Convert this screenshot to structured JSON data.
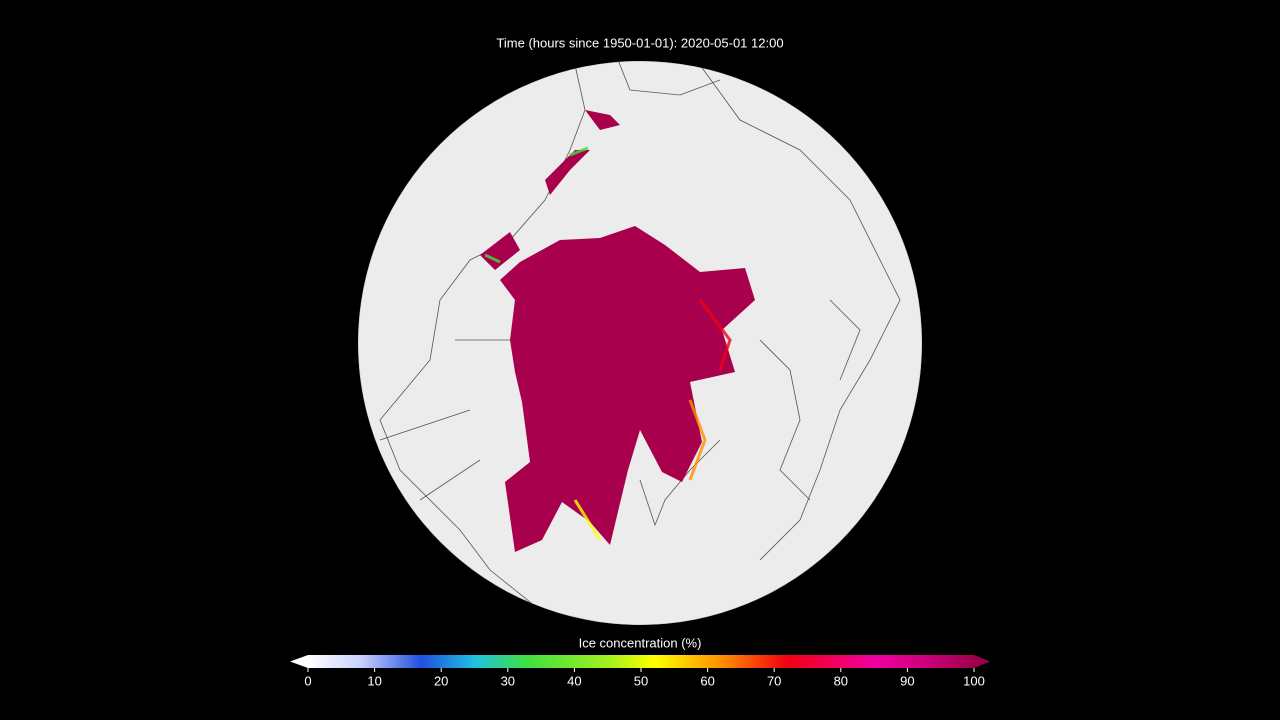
{
  "title": "Time (hours since 1950-01-01): 2020-05-01 12:00",
  "colorbar": {
    "label": "Ice concentration (%)",
    "lim": [
      0,
      100
    ],
    "ticks": [
      0,
      10,
      20,
      30,
      40,
      50,
      60,
      70,
      80,
      90,
      100
    ]
  }
}
